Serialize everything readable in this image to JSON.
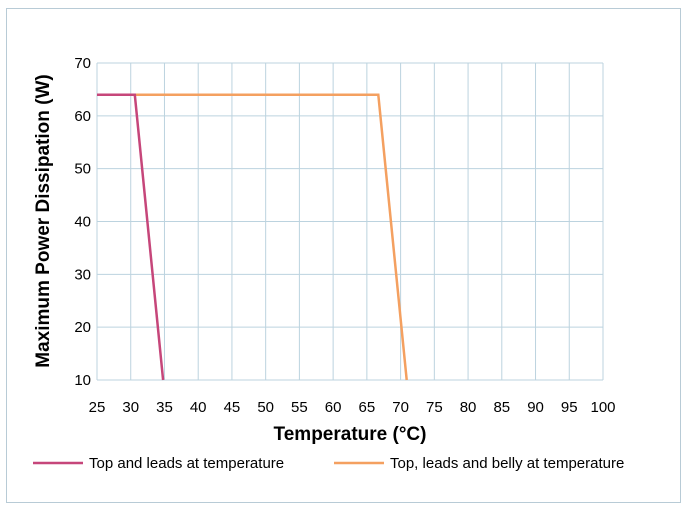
{
  "chart_data": {
    "type": "line",
    "xlabel": "Temperature (°C)",
    "ylabel": "Maximum Power Dissipation (W)",
    "xlim": [
      25,
      100
    ],
    "ylim": [
      10,
      70
    ],
    "x_ticks": [
      "25",
      "30",
      "35",
      "40",
      "45",
      "50",
      "55",
      "60",
      "65",
      "70",
      "75",
      "80",
      "85",
      "90",
      "95",
      "100"
    ],
    "y_ticks": [
      "10",
      "20",
      "30",
      "40",
      "50",
      "60",
      "70"
    ],
    "grid": true,
    "legend_position": "bottom",
    "series": [
      {
        "name": "Top and leads at temperature",
        "color": "#c6467a",
        "points": [
          [
            25,
            64
          ],
          [
            30.6,
            64
          ],
          [
            34.8,
            10
          ]
        ]
      },
      {
        "name": "Top, leads and belly at temperature",
        "color": "#f4a060",
        "points": [
          [
            25,
            64
          ],
          [
            66.7,
            64
          ],
          [
            70.9,
            10
          ]
        ]
      }
    ]
  }
}
